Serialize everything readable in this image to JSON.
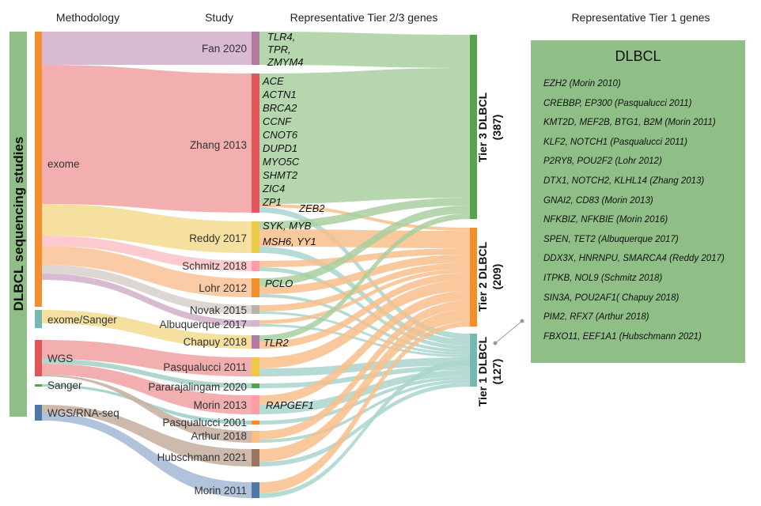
{
  "headers": {
    "methodology": "Methodology",
    "study": "Study",
    "tier23": "Representative Tier 2/3 genes",
    "tier1": "Representative Tier 1 genes"
  },
  "side_label": "DLBCL sequencing studies",
  "colors": {
    "exome": "#f28e2b",
    "exome_sanger": "#76b7b2",
    "wgs": "#e15759",
    "sanger": "#59a14f",
    "wgs_rna": "#4e79a7",
    "tier3": "#59a14f",
    "tier2": "#f28e2b",
    "tier1": "#76b7b2",
    "panel": "#8fbe86"
  },
  "methods": [
    {
      "id": "exome",
      "label": "exome",
      "color": "#f28e2b"
    },
    {
      "id": "exome_sanger",
      "label": "exome/Sanger",
      "color": "#76b7b2"
    },
    {
      "id": "wgs",
      "label": "WGS",
      "color": "#e15759"
    },
    {
      "id": "sanger",
      "label": "Sanger",
      "color": "#59a14f"
    },
    {
      "id": "wgs_rna",
      "label": "WGS/RNA-seq",
      "color": "#4e79a7"
    }
  ],
  "studies": [
    {
      "name": "Fan 2020",
      "color": "#b07aa1",
      "flowColor": "#d4b3cd",
      "method": "exome"
    },
    {
      "name": "Zhang 2013",
      "color": "#e15759",
      "flowColor": "#f2a6a6",
      "method": "exome"
    },
    {
      "name": "Reddy 2017",
      "color": "#edc948",
      "flowColor": "#f5dd95",
      "method": "exome"
    },
    {
      "name": "Schmitz 2018",
      "color": "#ff9da7",
      "flowColor": "#fcc5ca",
      "method": "exome"
    },
    {
      "name": "Lohr 2012",
      "color": "#f28e2b",
      "flowColor": "#f9c59a",
      "method": "exome"
    },
    {
      "name": "Novak 2015",
      "color": "#bab0ac",
      "flowColor": "#d9d3cf",
      "method": "exome"
    },
    {
      "name": "Albuquerque 2017",
      "color": "#b07aa1",
      "flowColor": "#d4b3cd",
      "method": "exome"
    },
    {
      "name": "Chapuy 2018",
      "color": "#b07aa1",
      "flowColor": "#f5dd95",
      "method": "exome_sanger"
    },
    {
      "name": "Pasqualucci 2011",
      "color": "#edc948",
      "flowColor": "#f2a6a6",
      "method": "wgs"
    },
    {
      "name": "Pararajalingam 2020",
      "color": "#59a14f",
      "flowColor": "#a9d1c8",
      "method": "wgs"
    },
    {
      "name": "Morin 2013",
      "color": "#ff9da7",
      "flowColor": "#f2a6a6",
      "method": "wgs"
    },
    {
      "name": "Pasqualucci 2001",
      "color": "#f28e2b",
      "flowColor": "#9bd0c6",
      "method": "sanger"
    },
    {
      "name": "Arthur 2018",
      "color": "#ffbe7d",
      "flowColor": "#c9b3a3",
      "method": "wgs"
    },
    {
      "name": "Hubschmann 2021",
      "color": "#9c755f",
      "flowColor": "#c9b3a3",
      "method": "wgs_rna"
    },
    {
      "name": "Morin 2011",
      "color": "#4e79a7",
      "flowColor": "#a8bcd6",
      "method": "wgs_rna"
    }
  ],
  "gene_labels": [
    {
      "text": "TLR4,",
      "study": "Fan 2020"
    },
    {
      "text": "TPR,",
      "study": "Fan 2020"
    },
    {
      "text": "ZMYM4",
      "study": "Fan 2020"
    },
    {
      "text": "ACE",
      "study": "Zhang 2013"
    },
    {
      "text": "ACTN1",
      "study": "Zhang 2013"
    },
    {
      "text": "BRCA2",
      "study": "Zhang 2013"
    },
    {
      "text": "CCNF",
      "study": "Zhang 2013"
    },
    {
      "text": "CNOT6",
      "study": "Zhang 2013"
    },
    {
      "text": "DUPD1",
      "study": "Zhang 2013"
    },
    {
      "text": "MYO5C",
      "study": "Zhang 2013"
    },
    {
      "text": "SHMT2",
      "study": "Zhang 2013"
    },
    {
      "text": "ZIC4",
      "study": "Zhang 2013"
    },
    {
      "text": "ZP1",
      "study": "Zhang 2013"
    },
    {
      "text": "ZEB2",
      "study": "Zhang 2013"
    },
    {
      "text": "SYK, MYB",
      "study": "Reddy 2017"
    },
    {
      "text": "MSH6, YY1",
      "study": "Reddy 2017"
    },
    {
      "text": "PCLO",
      "study": "Lohr 2012"
    },
    {
      "text": "TLR2",
      "study": "Chapuy 2018"
    },
    {
      "text": "RAPGEF1",
      "study": "Morin 2013"
    }
  ],
  "tiers": [
    {
      "id": "tier3",
      "label": "Tier 3 DLBCL",
      "count": "(387)",
      "color": "#59a14f"
    },
    {
      "id": "tier2",
      "label": "Tier 2 DLBCL",
      "count": "(209)",
      "color": "#f28e2b"
    },
    {
      "id": "tier1",
      "label": "Tier 1 DLBCL",
      "count": "(127)",
      "color": "#76b7b2"
    }
  ],
  "tier1_panel": {
    "title": "DLBCL",
    "genes": [
      "EZH2 (Morin 2010)",
      "CREBBP, EP300 (Pasqualucci 2011)",
      "KMT2D, MEF2B, BTG1, B2M (Morin 2011)",
      "KLF2, NOTCH1 (Pasqualucci 2011)",
      "P2RY8, POU2F2 (Lohr 2012)",
      "DTX1, NOTCH2, KLHL14 (Zhang 2013)",
      "GNAI2, CD83 (Morin 2013)",
      "NFKBIZ, NFKBIE (Morin 2016)",
      "SPEN, TET2 (Albuquerque 2017)",
      "DDX3X, HNRNPU, SMARCA4 (Reddy 2017)",
      "ITPKB, NOL9 (Schmitz 2018)",
      "SIN3A, POU2AF1( Chapuy 2018)",
      "PIM2, RFX7 (Arthur 2018)",
      "FBXO11, EEF1A1 (Hubschmann 2021)"
    ]
  }
}
